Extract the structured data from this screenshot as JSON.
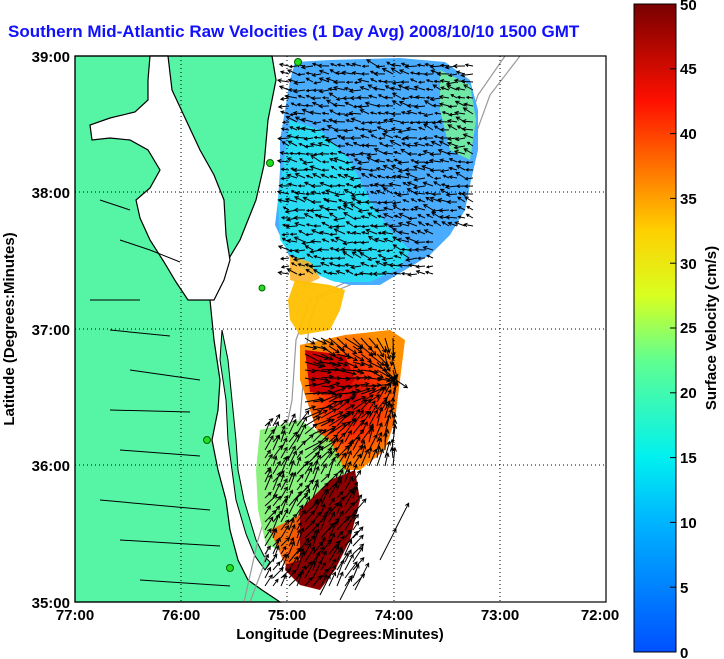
{
  "title": "Southern Mid-Atlantic Raw Velocities (1 Day Avg) 2008/10/10 1500 GMT",
  "x_axis": {
    "label": "Longitude (Degrees:Minutes)",
    "ticks": [
      "77:00",
      "76:00",
      "75:00",
      "74:00",
      "73:00",
      "72:00"
    ]
  },
  "y_axis": {
    "label": "Latitude (Degrees:Minutes)",
    "ticks": [
      "39:00",
      "38:00",
      "37:00",
      "36:00",
      "35:00"
    ]
  },
  "colorbar": {
    "label": "Surface Velocity (cm/s)",
    "ticks": [
      "50",
      "45",
      "40",
      "35",
      "30",
      "25",
      "20",
      "15",
      "10",
      "5",
      "0"
    ],
    "min": 0,
    "max": 50
  },
  "colors": {
    "land": "#55f5a5",
    "title": "#1010ff",
    "station": "#22dd22"
  },
  "stations_count": 5
}
